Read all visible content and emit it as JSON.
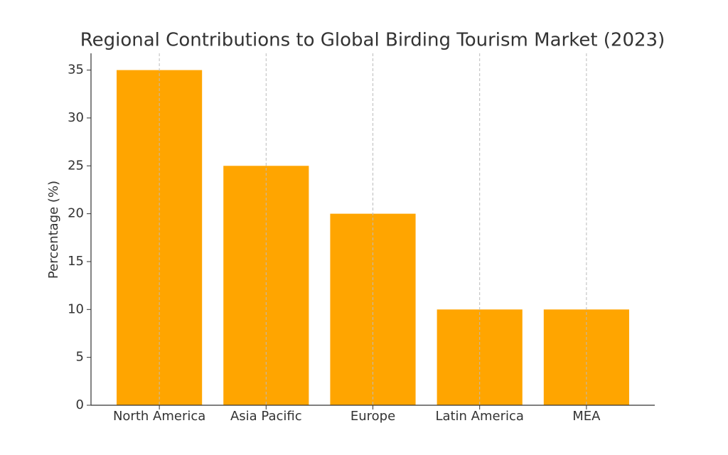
{
  "chart_data": {
    "type": "bar",
    "title": "Regional Contributions to Global Birding Tourism Market (2023)",
    "y_label": "Percentage (%)",
    "categories": [
      "North America",
      "Asia Pacific",
      "Europe",
      "Latin America",
      "MEA"
    ],
    "values": [
      35,
      25,
      20,
      10,
      10
    ],
    "color": "#ffa500",
    "ylim": [
      0,
      36.75
    ],
    "yticks": [
      0,
      5,
      10,
      15,
      20,
      25,
      30,
      35
    ],
    "grid": "x"
  }
}
